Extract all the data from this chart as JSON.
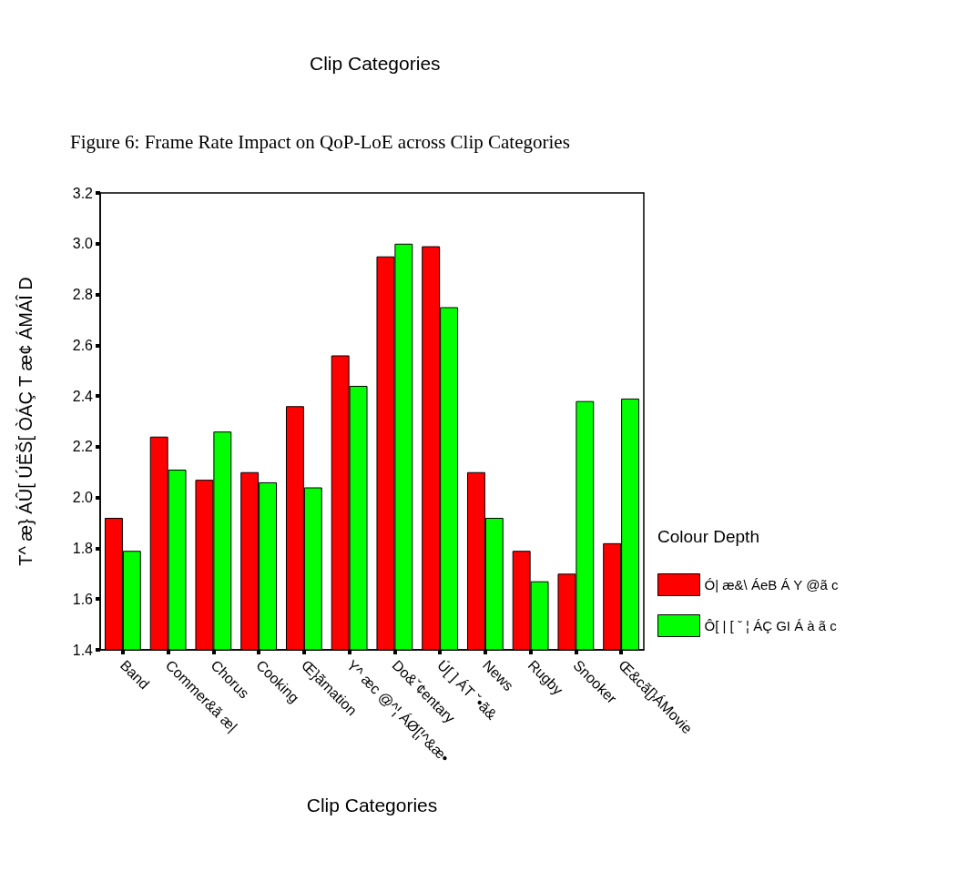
{
  "chart_data": {
    "type": "bar",
    "title": "Figure 6: Frame Rate Impact on QoP-LoE across Clip Categories",
    "xlabel": "Clip Categories",
    "ylabel": "T^ æ} ÁÛ[ ÚËŠ[ ÒÁÇ T æ¢ ÁMÁÎ D",
    "legend_title": "Colour Depth",
    "annotations": [
      "Clip Categories"
    ],
    "categories": [
      "Band",
      "Commer&ã æ|",
      "Chorus",
      "Cooking",
      "Œ}ãmation",
      "Y^ æc @^¦ ÁØ[¦^&æ•",
      "Do&ˇ¢entary",
      "Ú[ ] ÁT ˇ•ã&",
      "News",
      "Rugby",
      "Snooker",
      "Œ&cã[}ÁMovie"
    ],
    "series": [
      {
        "name": "Ó| æ&\\ ÁeB Á Y @ã c",
        "color": "#ff0000",
        "values": [
          1.92,
          2.24,
          2.07,
          2.1,
          2.36,
          2.56,
          2.95,
          2.99,
          2.1,
          1.79,
          1.7,
          1.82
        ]
      },
      {
        "name": "Ô[ | [ ˇ ¦ ÁÇ GI Á à ã c",
        "color": "#00ff00",
        "values": [
          1.79,
          2.11,
          2.26,
          2.06,
          2.04,
          2.44,
          3.0,
          2.75,
          1.92,
          1.67,
          2.38,
          2.39
        ]
      }
    ],
    "ylim": [
      1.4,
      3.2
    ],
    "yticks": [
      1.4,
      1.6,
      1.8,
      {
        "value": 2,
        "label": "2.0"
      },
      2.2,
      2.4,
      2.6,
      2.8,
      {
        "value": 3,
        "label": "3.0"
      },
      3.2
    ],
    "grid": false,
    "legend": "right"
  }
}
